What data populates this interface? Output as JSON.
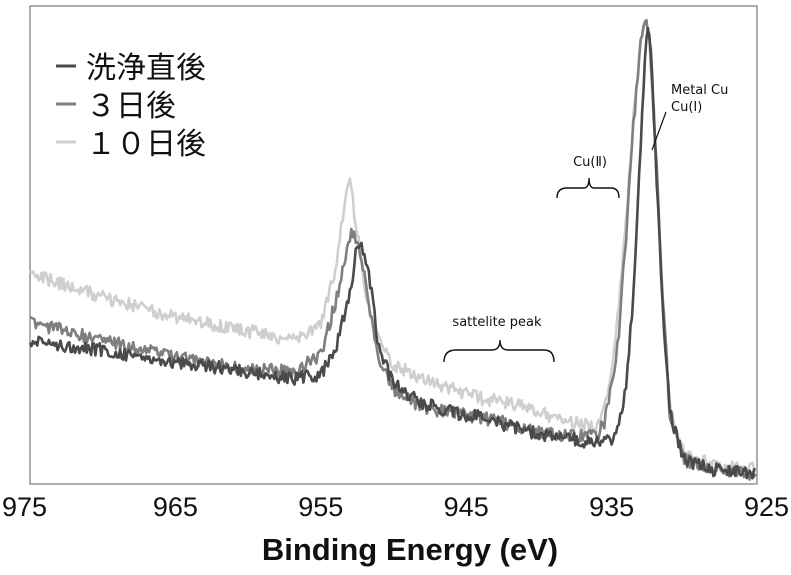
{
  "chart_data": {
    "type": "line",
    "xlabel": "Binding Energy (eV)",
    "ylabel": "",
    "xlim": [
      975,
      925
    ],
    "ylim": [
      0,
      1
    ],
    "x_ticks": [
      "975",
      "965",
      "955",
      "945",
      "935",
      "925"
    ],
    "grid": false,
    "legend_position": "top-left",
    "series": [
      {
        "name": "洗浄直後",
        "color": "#4a4a4a",
        "points": [
          [
            975,
            0.3
          ],
          [
            970,
            0.28
          ],
          [
            965,
            0.255
          ],
          [
            960,
            0.235
          ],
          [
            957,
            0.22
          ],
          [
            955,
            0.23
          ],
          [
            954,
            0.28
          ],
          [
            953,
            0.4
          ],
          [
            952.5,
            0.5
          ],
          [
            952,
            0.49
          ],
          [
            951.5,
            0.4
          ],
          [
            951,
            0.28
          ],
          [
            950,
            0.21
          ],
          [
            948,
            0.17
          ],
          [
            946,
            0.15
          ],
          [
            944,
            0.14
          ],
          [
            942,
            0.12
          ],
          [
            940,
            0.105
          ],
          [
            938,
            0.095
          ],
          [
            936,
            0.085
          ],
          [
            935,
            0.09
          ],
          [
            934.5,
            0.12
          ],
          [
            934,
            0.2
          ],
          [
            933.5,
            0.4
          ],
          [
            933,
            0.7
          ],
          [
            932.7,
            0.9
          ],
          [
            932.5,
            0.96
          ],
          [
            932.3,
            0.92
          ],
          [
            932,
            0.7
          ],
          [
            931.5,
            0.38
          ],
          [
            931,
            0.15
          ],
          [
            930,
            0.05
          ],
          [
            928,
            0.03
          ],
          [
            925,
            0.02
          ]
        ]
      },
      {
        "name": "３日後",
        "color": "#7f7f7f",
        "points": [
          [
            975,
            0.34
          ],
          [
            970,
            0.3
          ],
          [
            965,
            0.265
          ],
          [
            960,
            0.24
          ],
          [
            957,
            0.235
          ],
          [
            955,
            0.27
          ],
          [
            954,
            0.38
          ],
          [
            953,
            0.51
          ],
          [
            952.8,
            0.53
          ],
          [
            952,
            0.45
          ],
          [
            951.5,
            0.34
          ],
          [
            951,
            0.26
          ],
          [
            950,
            0.2
          ],
          [
            948,
            0.16
          ],
          [
            946,
            0.15
          ],
          [
            944,
            0.14
          ],
          [
            942,
            0.125
          ],
          [
            940,
            0.11
          ],
          [
            938,
            0.1
          ],
          [
            936,
            0.1
          ],
          [
            935.5,
            0.13
          ],
          [
            935,
            0.2
          ],
          [
            934.5,
            0.32
          ],
          [
            934,
            0.52
          ],
          [
            933.5,
            0.75
          ],
          [
            933,
            0.92
          ],
          [
            932.7,
            0.97
          ],
          [
            932.4,
            0.93
          ],
          [
            932,
            0.72
          ],
          [
            931.5,
            0.4
          ],
          [
            931,
            0.15
          ],
          [
            930,
            0.05
          ],
          [
            928,
            0.03
          ],
          [
            925,
            0.02
          ]
        ]
      },
      {
        "name": "１０日後",
        "color": "#cfcfcf",
        "points": [
          [
            975,
            0.44
          ],
          [
            970,
            0.39
          ],
          [
            965,
            0.35
          ],
          [
            960,
            0.32
          ],
          [
            957,
            0.3
          ],
          [
            955,
            0.33
          ],
          [
            954,
            0.45
          ],
          [
            953.3,
            0.6
          ],
          [
            953,
            0.63
          ],
          [
            952.5,
            0.53
          ],
          [
            952,
            0.4
          ],
          [
            951,
            0.3
          ],
          [
            950,
            0.25
          ],
          [
            948,
            0.22
          ],
          [
            946,
            0.2
          ],
          [
            944,
            0.18
          ],
          [
            942,
            0.17
          ],
          [
            940,
            0.15
          ],
          [
            938,
            0.13
          ],
          [
            936,
            0.12
          ],
          [
            935.5,
            0.16
          ],
          [
            935,
            0.24
          ],
          [
            934.5,
            0.37
          ],
          [
            934,
            0.55
          ],
          [
            933.5,
            0.77
          ],
          [
            933,
            0.93
          ],
          [
            932.7,
            0.98
          ],
          [
            932.4,
            0.94
          ],
          [
            932,
            0.72
          ],
          [
            931.5,
            0.4
          ],
          [
            931,
            0.16
          ],
          [
            930,
            0.06
          ],
          [
            928,
            0.04
          ],
          [
            925,
            0.03
          ]
        ]
      }
    ],
    "annotations": [
      {
        "text": "sattelite peak",
        "x_range": [
          946.5,
          938.5
        ],
        "y": 0.3
      },
      {
        "text": "Cu(Ⅱ)",
        "x_range": [
          938.8,
          934.3
        ],
        "y": 0.66
      },
      {
        "text": "Metal Cu",
        "x": 929.5,
        "y": 0.87
      },
      {
        "text": "Cu(Ⅰ)",
        "x": 929.5,
        "y": 0.82
      }
    ]
  }
}
